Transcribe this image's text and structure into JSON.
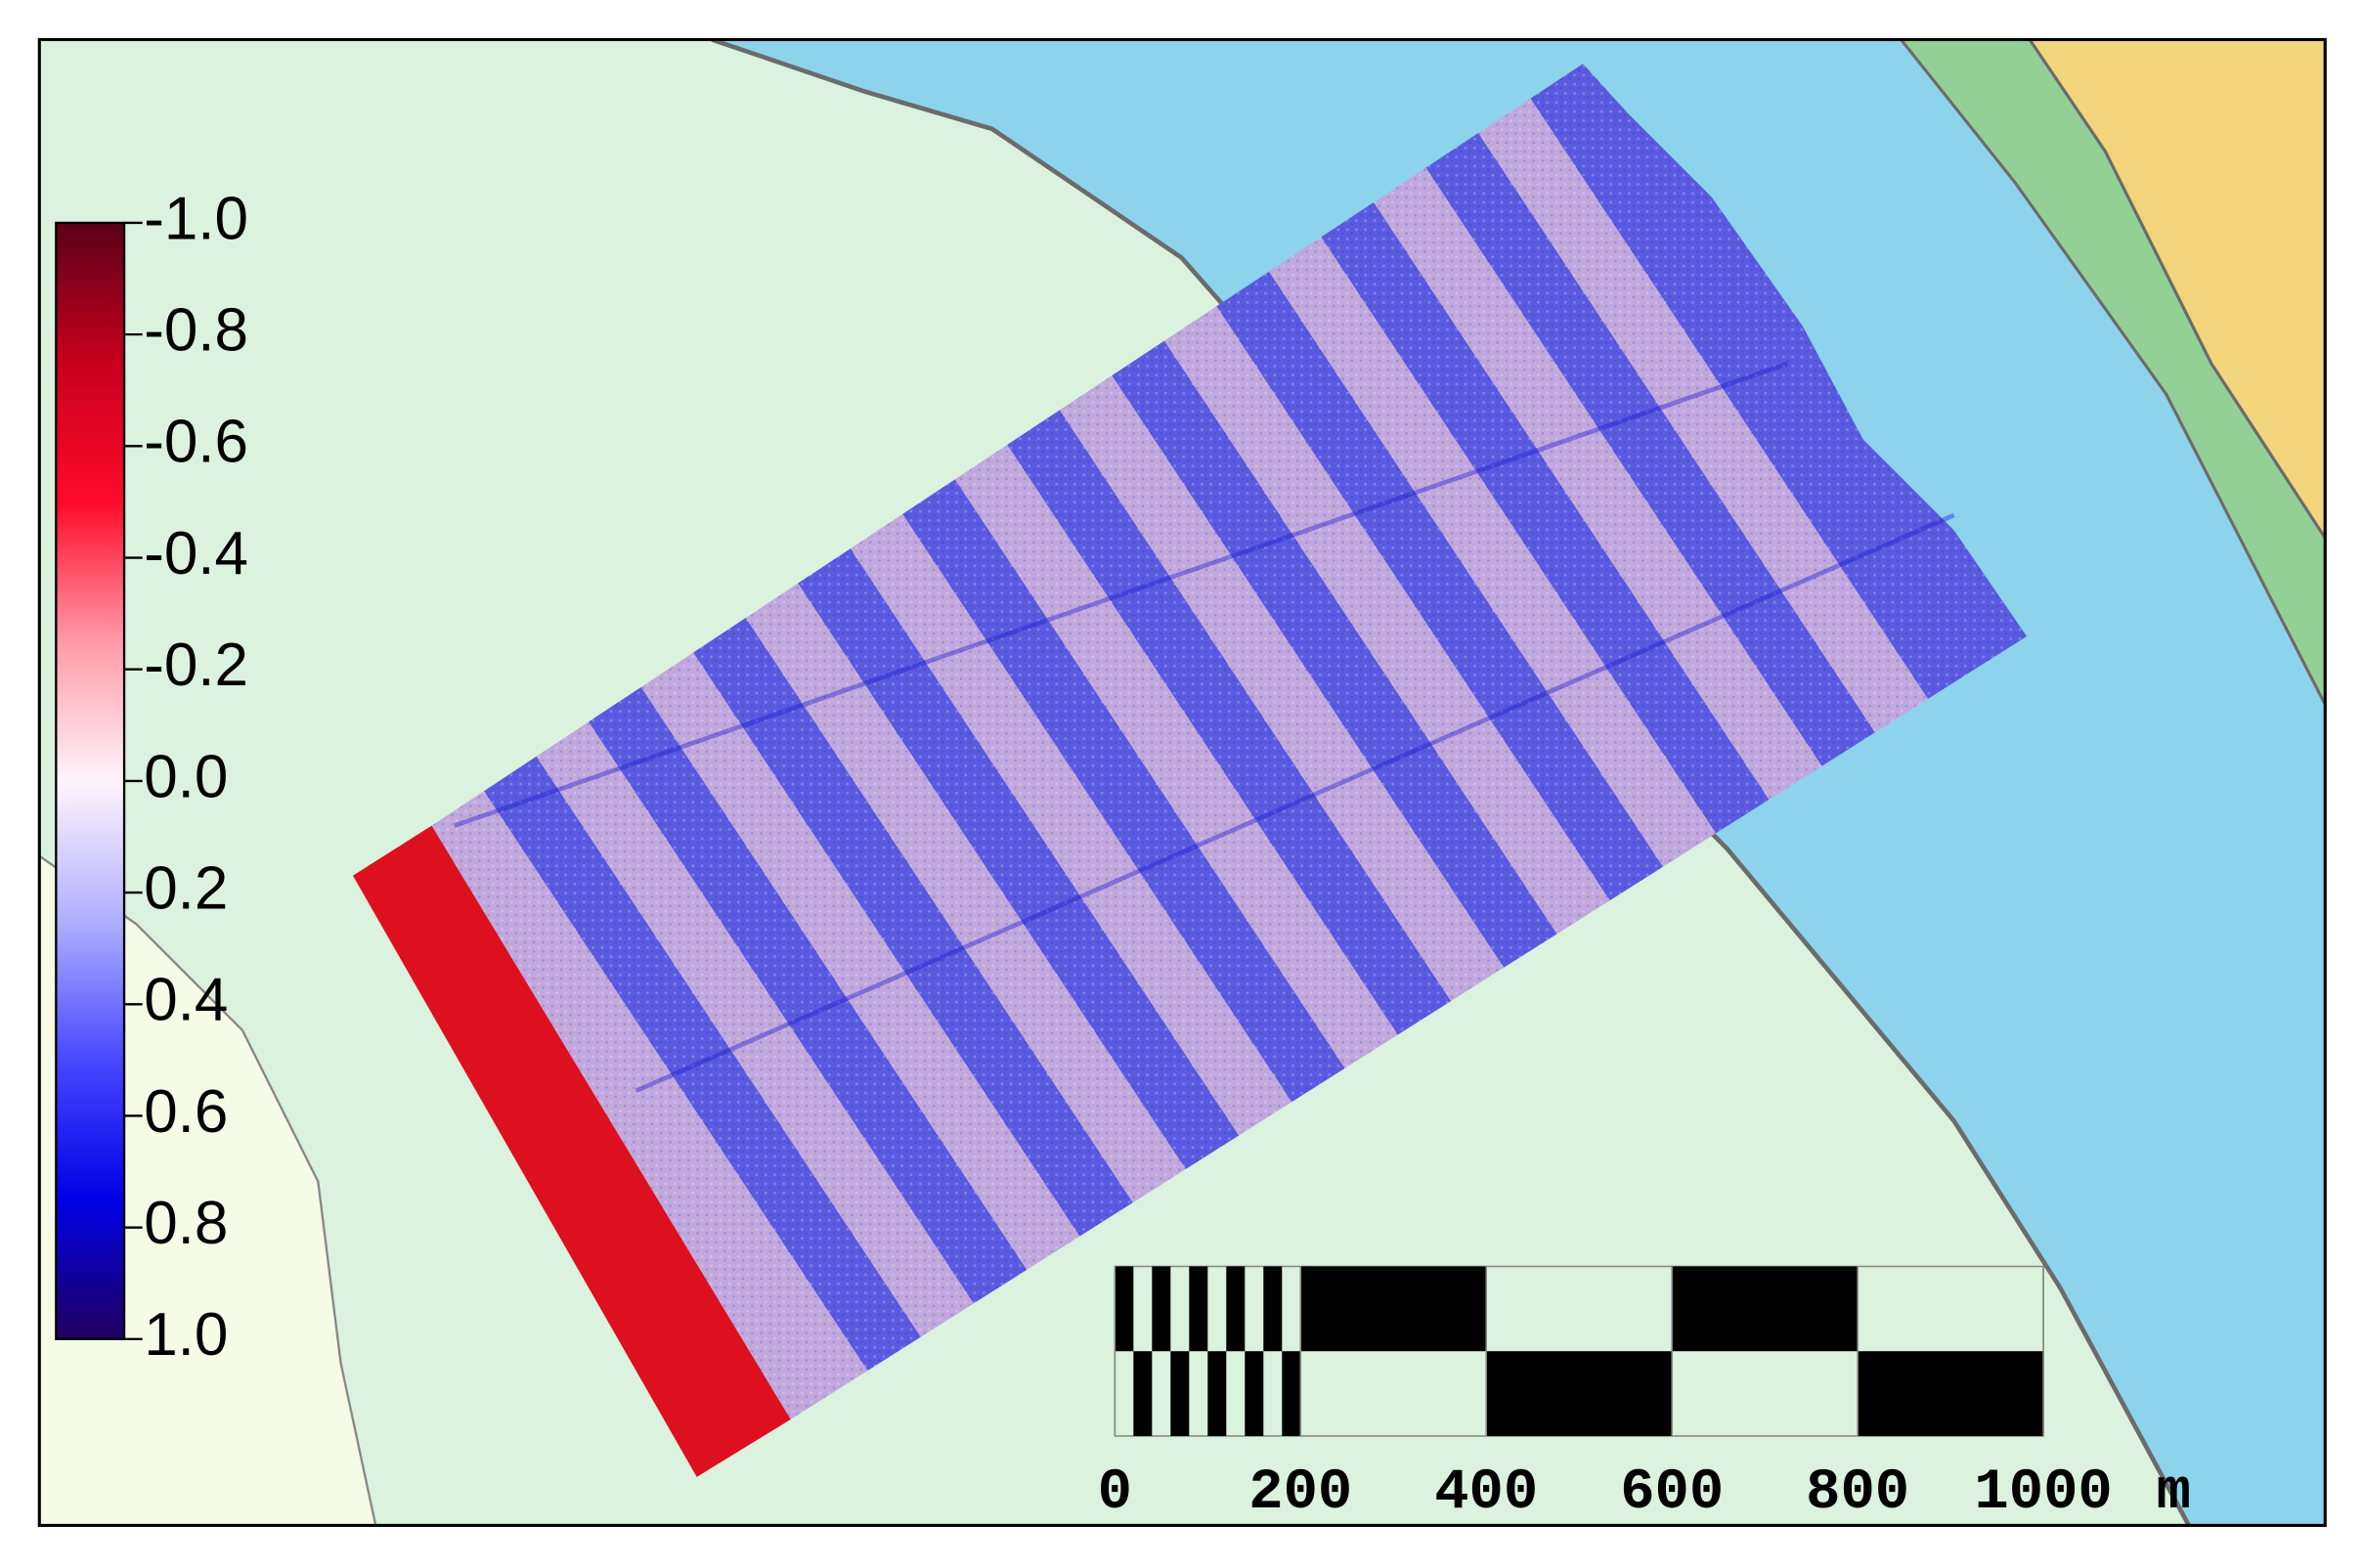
{
  "map": {
    "colorbar": {
      "lim": [
        -1,
        1
      ],
      "colors": [
        "#5a0018",
        "#c8001e",
        "#ff0a2a",
        "#ff9aa8",
        "#fff4fb",
        "#b0b0ff",
        "#4848ff",
        "#0000e6",
        "#200060"
      ],
      "ticks": [
        {
          "value": -1,
          "label": "-1.0"
        },
        {
          "value": -0.8,
          "label": "-0.8"
        },
        {
          "value": -0.6,
          "label": "-0.6"
        },
        {
          "value": -0.4,
          "label": "-0.4"
        },
        {
          "value": -0.2,
          "label": "-0.2"
        },
        {
          "value": 0,
          "label": "0.0"
        },
        {
          "value": 0.2,
          "label": "0.2"
        },
        {
          "value": 0.4,
          "label": "0.4"
        },
        {
          "value": 0.6,
          "label": "0.6"
        },
        {
          "value": 0.8,
          "label": "0.8"
        },
        {
          "value": 1,
          "label": "1.0"
        }
      ]
    },
    "scale_bar": {
      "lim": [
        0,
        1000
      ],
      "ticks": [
        0,
        200,
        400,
        600,
        800,
        1000
      ],
      "unit": "m"
    }
  }
}
